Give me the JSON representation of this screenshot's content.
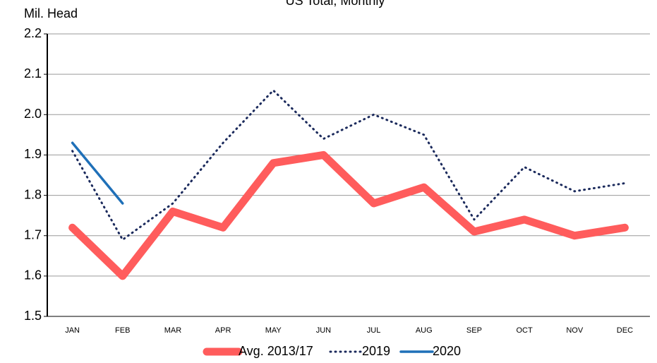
{
  "chart_data": {
    "type": "line",
    "title": "US Total, Monthly",
    "y_label": "Mil. Head",
    "categories": [
      "JAN",
      "FEB",
      "MAR",
      "APR",
      "MAY",
      "JUN",
      "JUL",
      "AUG",
      "SEP",
      "OCT",
      "NOV",
      "DEC"
    ],
    "series": [
      {
        "name": "Avg. 2013/17",
        "color": "#ff5c5c",
        "values": [
          1.72,
          1.6,
          1.76,
          1.72,
          1.88,
          1.9,
          1.78,
          1.82,
          1.71,
          1.74,
          1.7,
          1.72
        ]
      },
      {
        "name": "2019",
        "color": "#1b2a5c",
        "values": [
          1.91,
          1.69,
          1.78,
          1.93,
          2.06,
          1.94,
          2.0,
          1.95,
          1.74,
          1.87,
          1.81,
          1.83
        ]
      },
      {
        "name": "2020",
        "color": "#1f70b8",
        "values": [
          1.93,
          1.78,
          null,
          null,
          null,
          null,
          null,
          null,
          null,
          null,
          null,
          null
        ]
      }
    ],
    "ylim": [
      1.5,
      2.2
    ],
    "yticks": [
      1.5,
      1.6,
      1.7,
      1.8,
      1.9,
      {
        "value": 2,
        "label": "2.0"
      },
      2.1,
      2.2
    ],
    "grid": true,
    "legend": "bottom"
  }
}
